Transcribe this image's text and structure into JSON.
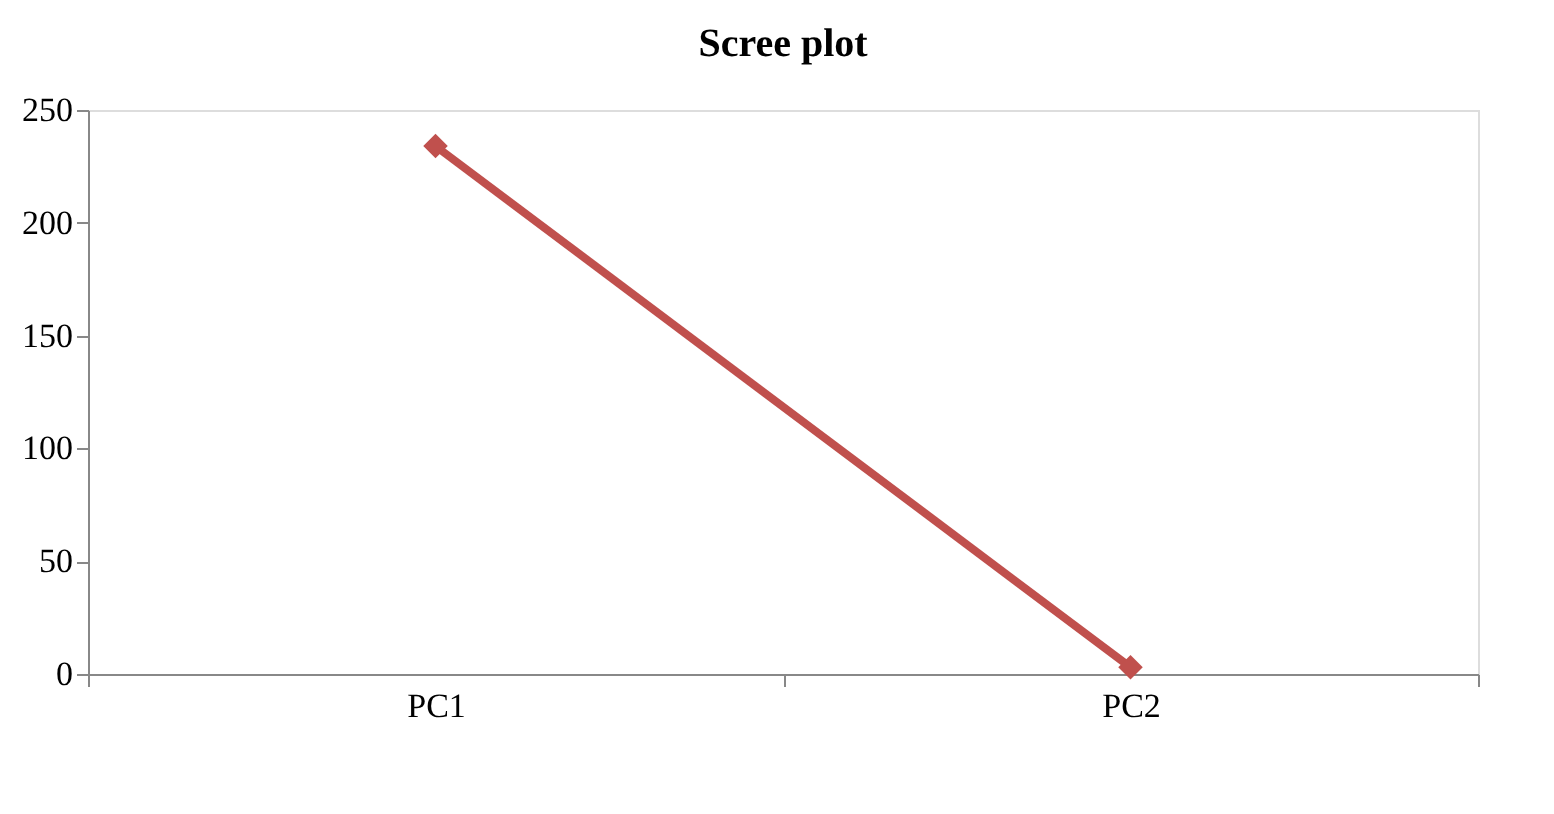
{
  "chart_data": {
    "type": "line",
    "title": "Scree plot",
    "categories": [
      "PC1",
      "PC2"
    ],
    "series": [
      {
        "color": "#c0504d",
        "values": [
          234,
          3
        ]
      }
    ],
    "ylim": [
      0,
      250
    ],
    "yticks": [
      0,
      50,
      100,
      150,
      200,
      250
    ],
    "marker": "diamond",
    "line_style": "solid",
    "grid": false
  }
}
